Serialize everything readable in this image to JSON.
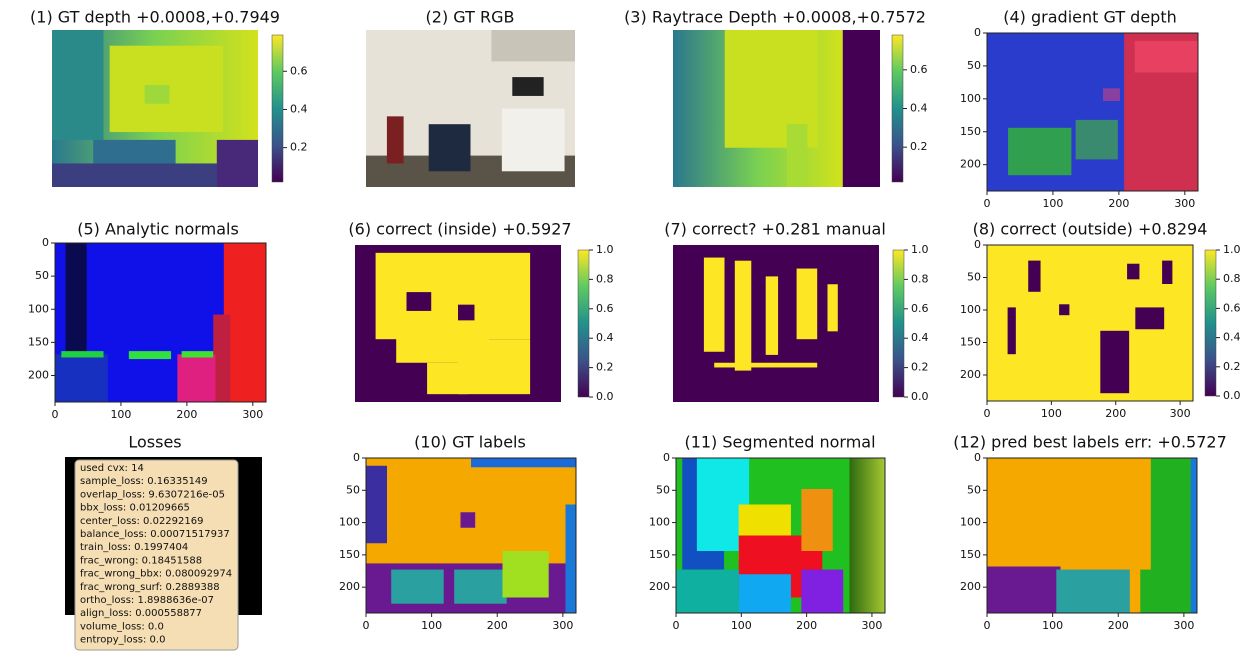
{
  "panels": [
    {
      "title": "(1) GT depth +0.0008,+0.7949",
      "colorbar": {
        "lim": [
          0.02,
          0.79
        ],
        "ticks": [
          0.2,
          0.4,
          0.6
        ]
      }
    },
    {
      "title": "(2) GT RGB"
    },
    {
      "title": "(3) Raytrace Depth +0.0008,+0.7572",
      "colorbar": {
        "lim": [
          0.02,
          0.78
        ],
        "ticks": [
          0.2,
          0.4,
          0.6
        ]
      }
    },
    {
      "title": "(4) gradient GT depth",
      "xlim": [
        0,
        320
      ],
      "ylim": [
        240,
        0
      ],
      "xticks": [
        0,
        100,
        200,
        300
      ],
      "yticks": [
        0,
        50,
        100,
        150,
        200
      ]
    },
    {
      "title": "(5) Analytic normals",
      "xlim": [
        0,
        320
      ],
      "ylim": [
        240,
        0
      ],
      "xticks": [
        0,
        100,
        200,
        300
      ],
      "yticks": [
        0,
        50,
        100,
        150,
        200
      ]
    },
    {
      "title": "(6) correct (inside) +0.5927",
      "colorbar": {
        "lim": [
          0,
          1
        ],
        "ticks": [
          {
            "value": 0,
            "label": "0.0"
          },
          0.2,
          0.4,
          0.6,
          0.8,
          {
            "value": 1,
            "label": "1.0"
          }
        ]
      }
    },
    {
      "title": "(7) correct? +0.281 manual",
      "colorbar": {
        "lim": [
          0,
          1
        ],
        "ticks": [
          {
            "value": 0,
            "label": "0.0"
          },
          0.2,
          0.4,
          0.6,
          0.8,
          {
            "value": 1,
            "label": "1.0"
          }
        ]
      }
    },
    {
      "title": "(8) correct (outside) +0.8294",
      "xlim": [
        0,
        320
      ],
      "ylim": [
        240,
        0
      ],
      "xticks": [
        0,
        100,
        200,
        300
      ],
      "yticks": [
        0,
        50,
        100,
        150,
        200
      ],
      "colorbar": {
        "lim": [
          0,
          1
        ],
        "ticks": [
          {
            "value": 0,
            "label": "0.0"
          },
          0.2,
          0.4,
          0.6,
          0.8,
          {
            "value": 1,
            "label": "1.0"
          }
        ]
      }
    },
    {
      "title": "Losses",
      "lines": [
        "used cvx: 14",
        "sample_loss: 0.16335149",
        "overlap_loss: 9.6307216e-05",
        "bbx_loss: 0.01209665",
        "center_loss: 0.02292169",
        "balance_loss: 0.00071517937",
        "train_loss: 0.1997404",
        "frac_wrong: 0.18451588",
        "frac_wrong_bbx: 0.080092974",
        "frac_wrong_surf: 0.2889388",
        "ortho_loss: 1.8988636e-07",
        "align_loss: 0.000558877",
        "volume_loss: 0.0",
        "entropy_loss: 0.0"
      ]
    },
    {
      "title": "(10) GT labels",
      "xlim": [
        0,
        320
      ],
      "ylim": [
        240,
        0
      ],
      "xticks": [
        0,
        100,
        200,
        300
      ],
      "yticks": [
        0,
        50,
        100,
        150,
        200
      ]
    },
    {
      "title": "(11) Segmented normal",
      "xlim": [
        0,
        320
      ],
      "ylim": [
        240,
        0
      ],
      "xticks": [
        0,
        100,
        200,
        300
      ],
      "yticks": [
        0,
        50,
        100,
        150,
        200
      ]
    },
    {
      "title": "(12) pred best labels err: +0.5727",
      "xlim": [
        0,
        320
      ],
      "ylim": [
        240,
        0
      ],
      "xticks": [
        0,
        100,
        200,
        300
      ],
      "yticks": [
        0,
        50,
        100,
        150,
        200
      ]
    }
  ]
}
